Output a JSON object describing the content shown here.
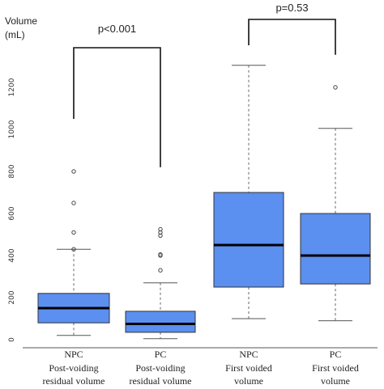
{
  "chart_data": {
    "type": "boxplot",
    "ylabel": "Volume",
    "yunit": "(mL)",
    "ylim": [
      0,
      1300
    ],
    "yticks": [
      0,
      200,
      400,
      600,
      800,
      1000,
      1200
    ],
    "box_color": "#5b8ff0",
    "groups": [
      {
        "label_lines": [
          "NPC",
          "Post-voiding",
          "residual volume"
        ],
        "whisker_low": 20,
        "q1": 80,
        "median": 150,
        "q3": 220,
        "whisker_high": 430,
        "outliers": [
          430,
          510,
          650,
          800
        ]
      },
      {
        "label_lines": [
          "PC",
          "Post-voiding",
          "residual volume"
        ],
        "whisker_low": 5,
        "q1": 35,
        "median": 75,
        "q3": 135,
        "whisker_high": 270,
        "outliers": [
          330,
          400,
          405,
          495,
          510,
          525
        ]
      },
      {
        "label_lines": [
          "NPC",
          "First voided",
          "volume"
        ],
        "whisker_low": 100,
        "q1": 250,
        "median": 450,
        "q3": 700,
        "whisker_high": 1305,
        "outliers": []
      },
      {
        "label_lines": [
          "PC",
          "First voided",
          "volume"
        ],
        "whisker_low": 90,
        "q1": 265,
        "median": 400,
        "q3": 600,
        "whisker_high": 1005,
        "outliers": [
          1200
        ]
      }
    ],
    "comparisons": [
      {
        "groups": [
          0,
          1
        ],
        "label": "p<0.001",
        "left_top": 1050,
        "right_top": 820
      },
      {
        "groups": [
          2,
          3
        ],
        "label": "p=0.53",
        "left_top": 1400,
        "right_top": 1355
      }
    ]
  }
}
